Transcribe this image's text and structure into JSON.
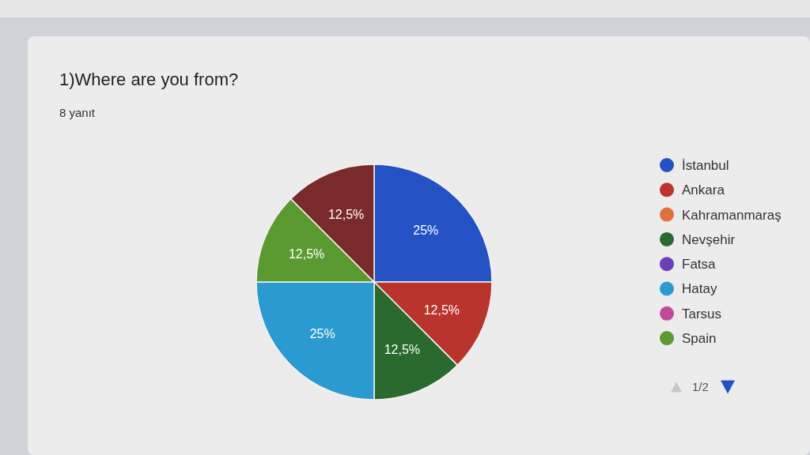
{
  "chart_data": {
    "type": "pie",
    "title": "1)Where are you from?",
    "subtitle": "8 yanıt",
    "categories": [
      "İstanbul",
      "Ankara",
      "Kahramanmaraş",
      "Nevşehir",
      "Fatsa",
      "Hatay",
      "Tarsus",
      "Spain",
      null
    ],
    "values": [
      25,
      12.5,
      0,
      12.5,
      0,
      25,
      0,
      12.5,
      12.5
    ],
    "colors": [
      "#2452c4",
      "#b8342c",
      "#e0703c",
      "#2a6a2e",
      "#6a40b8",
      "#2a9ad0",
      "#c04a9a",
      "#5a9a30",
      "#7a2a2a"
    ],
    "value_labels": [
      "25%",
      "12,5%",
      null,
      "12,5%",
      null,
      "25%",
      null,
      "12,5%",
      "12,5%"
    ],
    "legend": "right",
    "annotations": [
      "1/2"
    ]
  }
}
